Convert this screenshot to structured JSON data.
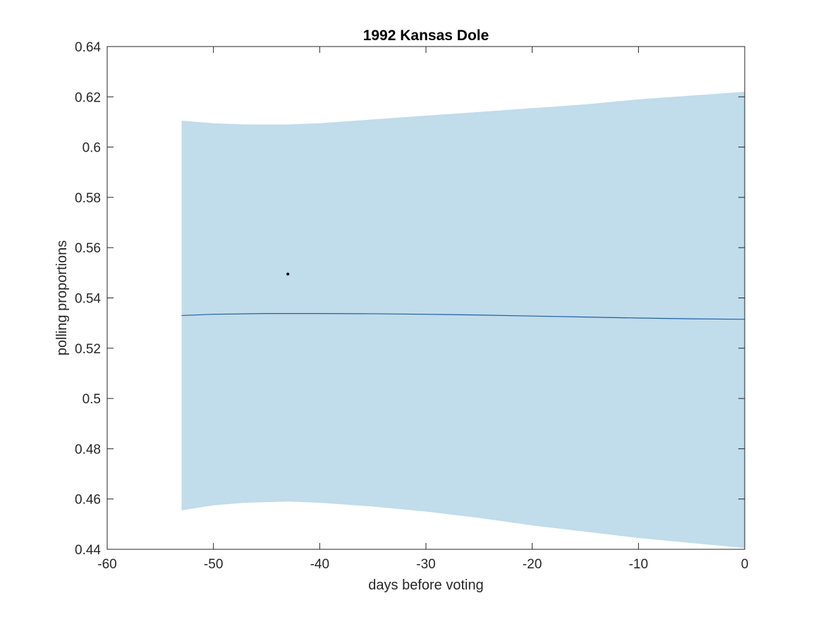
{
  "chart_data": {
    "type": "line",
    "title": "1992 Kansas Dole",
    "xlabel": "days before voting",
    "ylabel": "polling proportions",
    "xlim": [
      -60,
      0
    ],
    "ylim": [
      0.44,
      0.64
    ],
    "xticks": [
      -60,
      -50,
      -40,
      -30,
      -20,
      -10,
      0
    ],
    "yticks": [
      0.44,
      0.46,
      0.48,
      0.5,
      0.52,
      0.54,
      0.56,
      0.58,
      0.6,
      0.62,
      0.64
    ],
    "xtick_labels": [
      "-60",
      "-50",
      "-40",
      "-30",
      "-20",
      "-10",
      "0"
    ],
    "ytick_labels": [
      "0.44",
      "0.46",
      "0.48",
      "0.5",
      "0.52",
      "0.54",
      "0.56",
      "0.58",
      "0.6",
      "0.62",
      "0.64"
    ],
    "grid": false,
    "band": {
      "x": [
        -53,
        -50,
        -47,
        -43,
        -40,
        -35,
        -30,
        -25,
        -20,
        -15,
        -10,
        -5,
        0
      ],
      "upper": [
        0.6105,
        0.6095,
        0.609,
        0.609,
        0.6095,
        0.611,
        0.6125,
        0.614,
        0.6155,
        0.617,
        0.619,
        0.6205,
        0.622
      ],
      "lower": [
        0.4555,
        0.4575,
        0.4585,
        0.459,
        0.4585,
        0.457,
        0.455,
        0.4525,
        0.4495,
        0.447,
        0.4445,
        0.4425,
        0.4405
      ],
      "color": "#c1dcea"
    },
    "series": [
      {
        "x": [
          -53,
          -50,
          -45,
          -40,
          -35,
          -30,
          -25,
          -20,
          -15,
          -10,
          -5,
          0
        ],
        "values": [
          0.533,
          0.5335,
          0.5338,
          0.5338,
          0.5337,
          0.5335,
          0.5332,
          0.5328,
          0.5324,
          0.532,
          0.5317,
          0.5315
        ],
        "color": "#1f5fa8"
      }
    ],
    "points": [
      {
        "x": -43,
        "y": 0.5495,
        "color": "#000000"
      }
    ]
  }
}
